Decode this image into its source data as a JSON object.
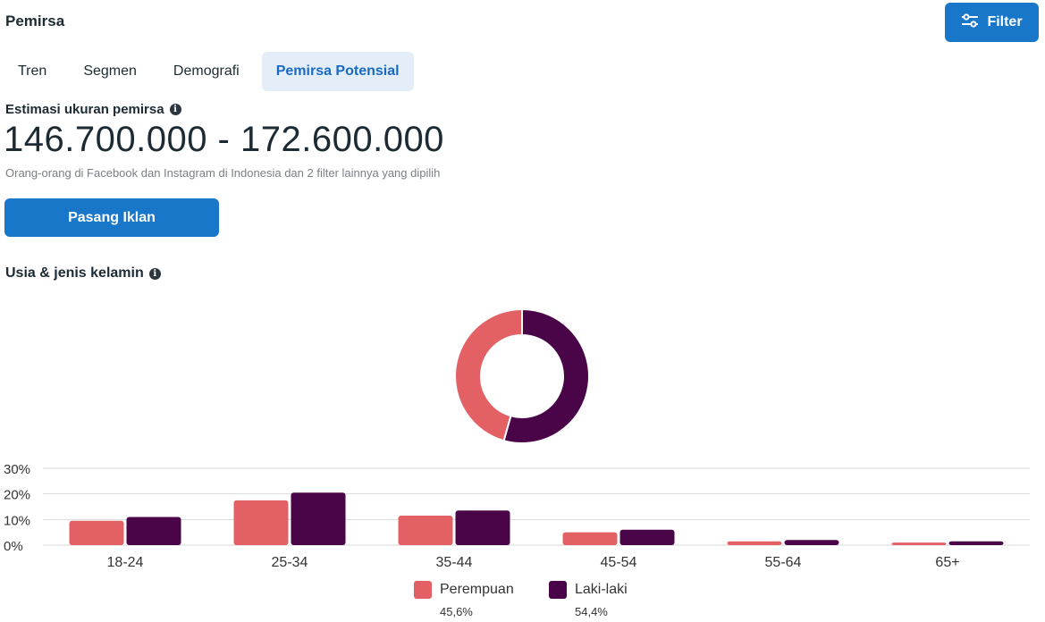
{
  "header": {
    "title": "Pemirsa",
    "filter_label": "Filter"
  },
  "tabs": [
    {
      "label": "Tren",
      "active": false
    },
    {
      "label": "Segmen",
      "active": false
    },
    {
      "label": "Demografi",
      "active": false
    },
    {
      "label": "Pemirsa Potensial",
      "active": true
    }
  ],
  "estimate": {
    "label": "Estimasi ukuran pemirsa",
    "range": "146.700.000 - 172.600.000",
    "description": "Orang-orang di Facebook dan Instagram di Indonesia dan 2 filter lainnya yang dipilih"
  },
  "cta_label": "Pasang Iklan",
  "section_title": "Usia & jenis kelamin",
  "colors": {
    "accent": "#1877c9",
    "female": "#e36065",
    "male": "#4a0549"
  },
  "chart_data": [
    {
      "type": "pie",
      "variant": "donut",
      "series": [
        {
          "name": "Perempuan",
          "value": 45.6,
          "color": "#e36065"
        },
        {
          "name": "Laki-laki",
          "value": 54.4,
          "color": "#4a0549"
        }
      ]
    },
    {
      "type": "bar",
      "categories": [
        "18-24",
        "25-34",
        "35-44",
        "45-54",
        "55-64",
        "65+"
      ],
      "series": [
        {
          "name": "Perempuan",
          "values": [
            9.5,
            17.5,
            11.5,
            5,
            1.5,
            1
          ],
          "color": "#e36065"
        },
        {
          "name": "Laki-laki",
          "values": [
            11,
            20.5,
            13.5,
            6,
            2,
            1.5
          ],
          "color": "#4a0549"
        }
      ],
      "yticks": [
        "0%",
        "10%",
        "20%",
        "30%"
      ],
      "ylim": [
        0,
        30
      ],
      "grid": true,
      "legend": "bottom"
    }
  ],
  "legend": [
    {
      "name": "Perempuan",
      "pct": "45,6%"
    },
    {
      "name": "Laki-laki",
      "pct": "54,4%"
    }
  ]
}
